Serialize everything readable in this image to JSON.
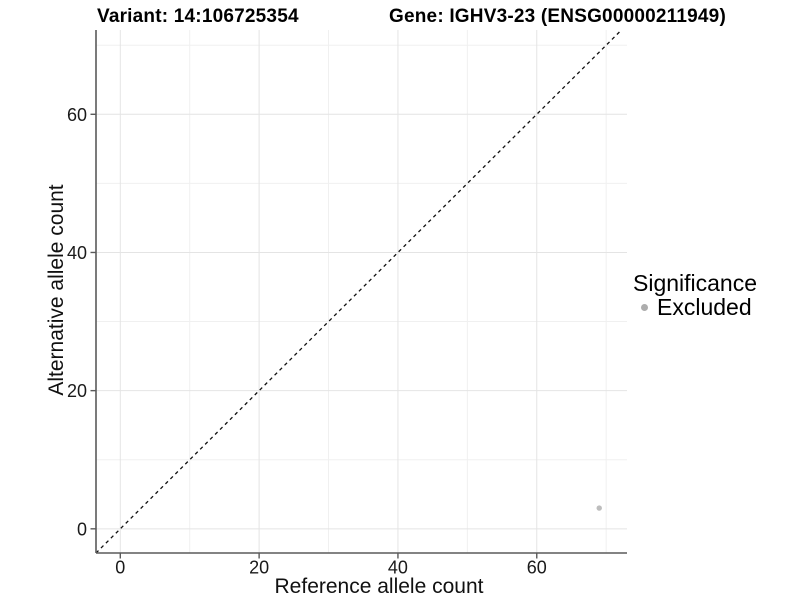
{
  "titles": {
    "variant": "Variant: 14:106725354",
    "gene": "Gene: IGHV3-23 (ENSG00000211949)"
  },
  "colors": {
    "background": "#ffffff",
    "point": "#bdbdbd",
    "legend_dot": "#adadad",
    "grid_major": "#e4e4e4",
    "grid_minor": "#f0f0f0",
    "axis_line": "#5a5a5a",
    "tick_text": "#1a1a1a",
    "dashed_line": "#111111"
  },
  "chart_data": {
    "type": "scatter",
    "xlabel": "Reference allele count",
    "ylabel": "Alternative allele count",
    "xlim": [
      -3.5,
      73.0
    ],
    "ylim": [
      -3.5,
      72.2
    ],
    "x_ticks": [
      0,
      20,
      40,
      60
    ],
    "y_ticks": [
      0,
      20,
      40,
      60
    ],
    "x_minor_ticks": [
      10,
      30,
      50,
      70
    ],
    "y_minor_ticks": [
      10,
      30,
      50,
      70
    ],
    "grid": true,
    "points": [
      {
        "x": 69,
        "y": 3,
        "series": "Excluded"
      }
    ],
    "reference_line": {
      "slope": 1,
      "intercept": 0,
      "style": "dashed"
    },
    "legend": {
      "title": "Significance",
      "position": "right",
      "items": [
        {
          "label": "Excluded"
        }
      ]
    }
  }
}
